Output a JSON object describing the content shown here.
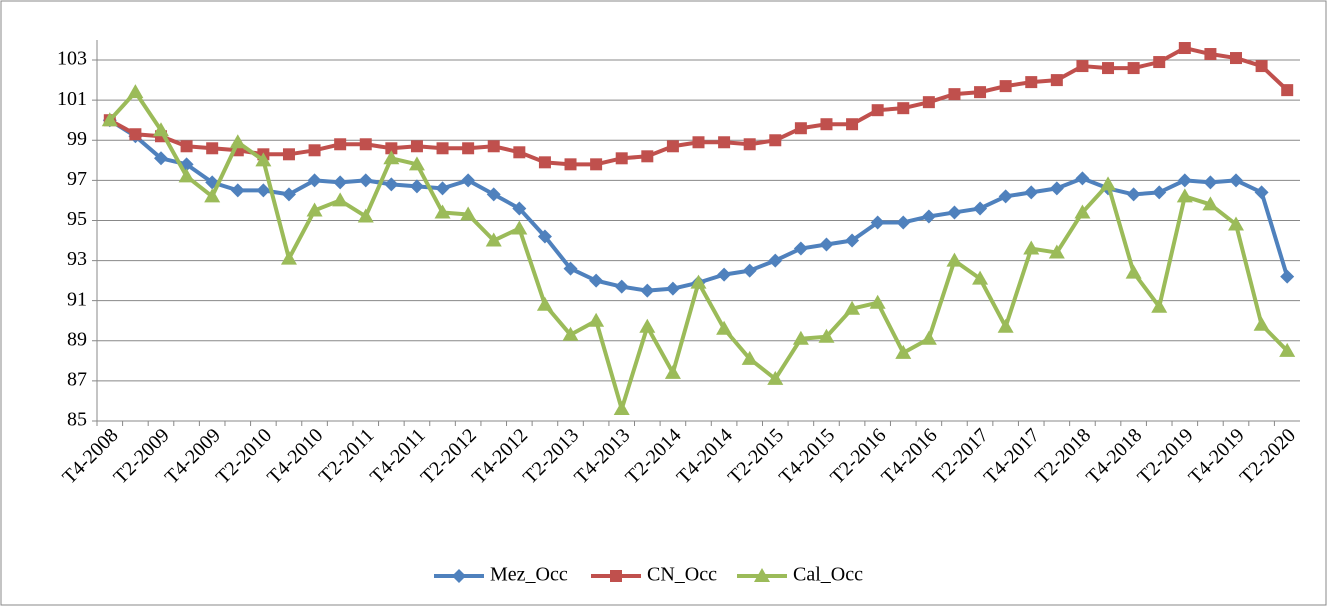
{
  "chart_data": {
    "type": "line",
    "categories": [
      "T4-2008",
      null,
      "T2-2009",
      null,
      "T4-2009",
      null,
      "T2-2010",
      null,
      "T4-2010",
      null,
      "T2-2011",
      null,
      "T4-2011",
      null,
      "T2-2012",
      null,
      "T4-2012",
      null,
      "T2-2013",
      null,
      "T4-2013",
      null,
      "T2-2014",
      null,
      "T4-2014",
      null,
      "T2-2015",
      null,
      "T4-2015",
      null,
      "T2-2016",
      null,
      "T4-2016",
      null,
      "T2-2017",
      null,
      "T4-2017",
      null,
      "T2-2018",
      null,
      "T4-2018",
      null,
      "T2-2019",
      null,
      "T4-2019",
      null,
      "T2-2020"
    ],
    "series": [
      {
        "name": "Mez_Occ",
        "color": "#4f81bd",
        "marker": "diamond",
        "values": [
          100.0,
          99.2,
          98.1,
          97.8,
          96.9,
          96.5,
          96.5,
          96.3,
          97.0,
          96.9,
          97.0,
          96.8,
          96.7,
          96.6,
          97.0,
          96.3,
          95.6,
          94.2,
          92.6,
          92.0,
          91.7,
          91.5,
          91.6,
          91.9,
          92.3,
          92.5,
          93.0,
          93.6,
          93.8,
          94.0,
          94.9,
          94.9,
          95.2,
          95.4,
          95.6,
          96.2,
          96.4,
          96.6,
          97.1,
          96.6,
          96.3,
          96.4,
          97.0,
          96.9,
          97.0,
          96.4,
          92.2
        ]
      },
      {
        "name": "CN_Occ",
        "color": "#c0504d",
        "marker": "square",
        "values": [
          100.0,
          99.3,
          99.2,
          98.7,
          98.6,
          98.5,
          98.3,
          98.3,
          98.5,
          98.8,
          98.8,
          98.6,
          98.7,
          98.6,
          98.6,
          98.7,
          98.4,
          97.9,
          97.8,
          97.8,
          98.1,
          98.2,
          98.7,
          98.9,
          98.9,
          98.8,
          99.0,
          99.6,
          99.8,
          99.8,
          100.5,
          100.6,
          100.9,
          101.3,
          101.4,
          101.7,
          101.9,
          102.0,
          102.7,
          102.6,
          102.6,
          102.9,
          103.6,
          103.3,
          103.1,
          102.7,
          101.5
        ]
      },
      {
        "name": "Cal_Occ",
        "color": "#9bbb59",
        "marker": "triangle",
        "values": [
          100.0,
          101.4,
          99.5,
          97.2,
          96.2,
          98.9,
          98.0,
          93.1,
          95.5,
          96.0,
          95.2,
          98.1,
          97.8,
          95.4,
          95.3,
          94.0,
          94.6,
          90.8,
          89.3,
          90.0,
          85.6,
          89.7,
          87.4,
          91.9,
          89.6,
          88.1,
          87.1,
          89.1,
          89.2,
          90.6,
          90.9,
          88.4,
          89.1,
          93.0,
          92.1,
          89.7,
          93.6,
          93.4,
          95.4,
          96.8,
          92.4,
          90.7,
          96.2,
          95.8,
          94.8,
          89.8,
          88.5
        ]
      }
    ],
    "ylim": [
      85,
      104
    ],
    "yticks": [
      85,
      87,
      89,
      91,
      93,
      95,
      97,
      99,
      101,
      103
    ],
    "grid": true,
    "legend": "bottom"
  }
}
